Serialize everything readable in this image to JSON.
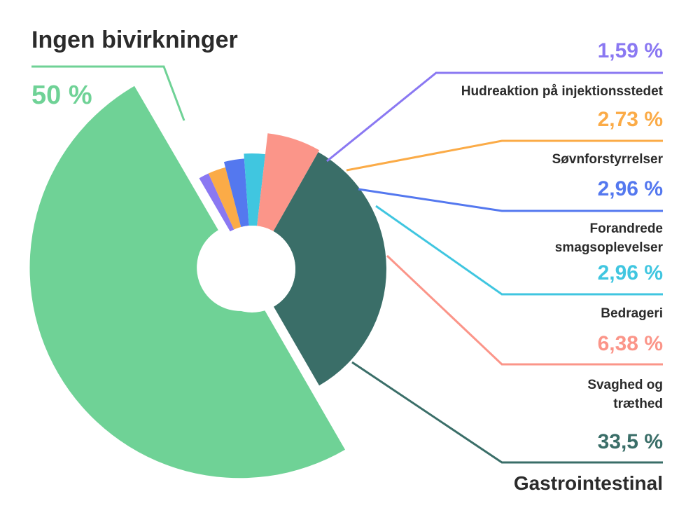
{
  "chart_data": {
    "type": "pie",
    "style": "exploded-donut",
    "value_format": "percent",
    "slices": [
      {
        "label": "Ingen bivirkninger",
        "value": 50,
        "value_label": "50 %",
        "color": "#6fd296",
        "explode": true
      },
      {
        "label": "Hudreaktion på injektionsstedet",
        "value": 1.59,
        "value_label": "1,59 %",
        "color": "#8a78f2"
      },
      {
        "label": "Søvnforstyrrelser",
        "value": 2.73,
        "value_label": "2,73 %",
        "color": "#fbab47"
      },
      {
        "label": "Forandrede smagsoplevelser",
        "label_lines": [
          "Forandrede",
          "smagsoplevelser"
        ],
        "value": 2.96,
        "value_label": "2,96 %",
        "color": "#5478ef"
      },
      {
        "label": "Bedrageri",
        "value": 2.96,
        "value_label": "2,96 %",
        "color": "#40c6e0"
      },
      {
        "label": "Svaghed og træthed",
        "label_lines": [
          "Svaghed og",
          "træthed"
        ],
        "value": 6.38,
        "value_label": "6,38 %",
        "color": "#fb9589"
      },
      {
        "label": "Gastrointestinal",
        "value": 33.5,
        "value_label": "33,5 %",
        "color": "#3a6e68"
      }
    ]
  }
}
